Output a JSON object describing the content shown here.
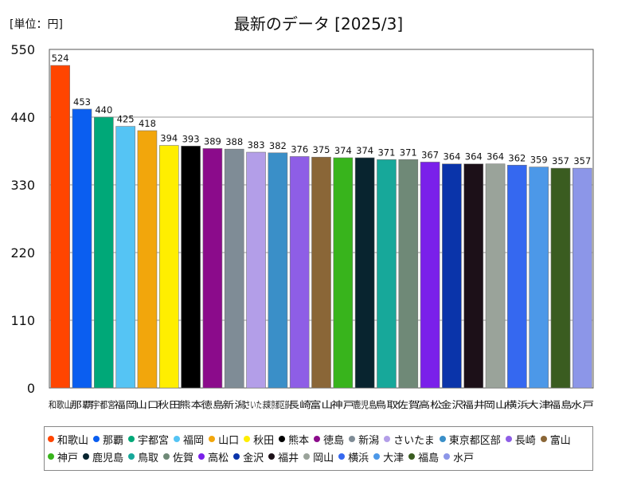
{
  "chart_data": {
    "type": "bar",
    "title": "最新のデータ [2025/3]",
    "unit_label": "[単位：円]",
    "ylim": [
      0,
      550
    ],
    "yticks": [
      0,
      110,
      220,
      330,
      440,
      550
    ],
    "grid": true,
    "legend_position": "bottom",
    "categories": [
      "和歌山",
      "那覇",
      "宇都宮",
      "福岡",
      "山口",
      "秋田",
      "熊本",
      "徳島",
      "新潟",
      "さいたま",
      "東京都区部",
      "長崎",
      "富山",
      "神戸",
      "鹿児島",
      "鳥取",
      "佐賀",
      "高松",
      "金沢",
      "福井",
      "岡山",
      "横浜",
      "大津",
      "福島",
      "水戸"
    ],
    "values": [
      524,
      453,
      440,
      425,
      418,
      394,
      393,
      389,
      388,
      383,
      382,
      376,
      375,
      374,
      374,
      371,
      371,
      367,
      364,
      364,
      364,
      362,
      359,
      357,
      357
    ],
    "colors": [
      "#ff4500",
      "#0a5ef0",
      "#00a878",
      "#55c4f4",
      "#f2a60c",
      "#ffee00",
      "#000000",
      "#8b0b8b",
      "#7f8c96",
      "#b39ee8",
      "#3a8fc8",
      "#8e5ee6",
      "#8a6637",
      "#38b41c",
      "#08242f",
      "#17a89a",
      "#6f8977",
      "#7a20ea",
      "#0a34aa",
      "#1c1018",
      "#9aa39a",
      "#3568f0",
      "#4c98e8",
      "#3a5c20",
      "#8c96e8"
    ]
  }
}
